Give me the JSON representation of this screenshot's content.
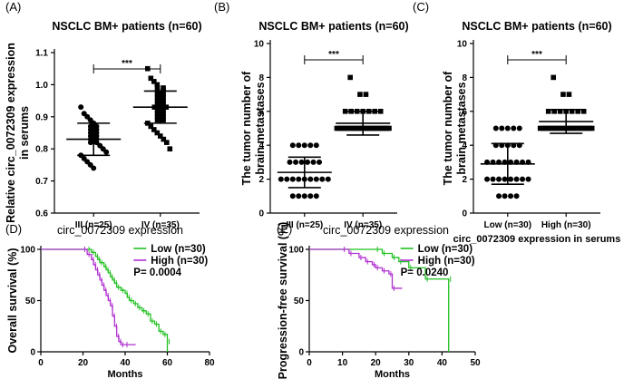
{
  "chart_data": [
    {
      "type": "scatter",
      "panel_label": "(A)",
      "title": "NSCLC BM+ patients (n=60)",
      "ylabel": "Relative circ_0072309 expression in serums",
      "ylabel_lines": [
        "Relative circ_0072309 expression",
        "in serums"
      ],
      "xlabel": "",
      "categories": [
        "III (n=25)",
        "IV (n=35)"
      ],
      "ylim": [
        0.6,
        1.1
      ],
      "yticks": [
        "0.6",
        "0.7",
        "0.8",
        "0.9",
        "1.0",
        "1.1"
      ],
      "series": [
        {
          "category": "III (n=25)",
          "marker": "circle",
          "mean": 0.83,
          "sd": 0.05,
          "values": [
            0.93,
            0.91,
            0.9,
            0.89,
            0.88,
            0.87,
            0.86,
            0.85,
            0.85,
            0.84,
            0.84,
            0.83,
            0.83,
            0.82,
            0.82,
            0.81,
            0.8,
            0.79,
            0.78,
            0.77,
            0.76,
            0.75,
            0.74,
            0.87,
            0.86
          ]
        },
        {
          "category": "IV (n=35)",
          "marker": "square",
          "mean": 0.93,
          "sd": 0.05,
          "values": [
            1.05,
            1.02,
            1.01,
            1.0,
            0.99,
            0.99,
            0.98,
            0.98,
            0.97,
            0.97,
            0.96,
            0.96,
            0.95,
            0.95,
            0.94,
            0.94,
            0.93,
            0.93,
            0.93,
            0.92,
            0.92,
            0.91,
            0.91,
            0.9,
            0.9,
            0.89,
            0.89,
            0.88,
            0.87,
            0.86,
            0.85,
            0.84,
            0.83,
            0.82,
            0.8
          ]
        }
      ],
      "significance": "***"
    },
    {
      "type": "scatter",
      "panel_label": "(B)",
      "title": "NSCLC BM+ patients (n=60)",
      "ylabel": "The tumor number of brain metastases",
      "ylabel_lines": [
        "The tumor number of",
        "brain metastases"
      ],
      "xlabel": "",
      "categories": [
        "III (n=25)",
        "IV (n=35)"
      ],
      "ylim": [
        0,
        10
      ],
      "yticks": [
        "0",
        "2",
        "4",
        "6",
        "8",
        "10"
      ],
      "series": [
        {
          "category": "III (n=25)",
          "marker": "circle",
          "mean": 2.4,
          "sd": 0.9,
          "values": [
            4,
            4,
            4,
            4,
            4,
            3,
            3,
            3,
            3,
            3,
            3,
            2,
            2,
            2,
            2,
            2,
            2,
            2,
            2,
            2,
            1,
            1,
            1,
            1,
            1
          ]
        },
        {
          "category": "IV (n=35)",
          "marker": "square",
          "mean": 5.3,
          "sd": 0.7,
          "values": [
            8,
            7,
            7,
            6,
            6,
            6,
            6,
            6,
            6,
            6,
            5,
            5,
            5,
            5,
            5,
            5,
            5,
            5,
            5,
            5,
            5,
            5,
            5,
            5,
            5,
            5,
            5,
            5,
            5,
            5,
            5,
            5,
            5,
            5,
            5
          ]
        }
      ],
      "significance": "***"
    },
    {
      "type": "scatter",
      "panel_label": "(C)",
      "title": "NSCLC BM+ patients (n=60)",
      "ylabel": "The tumor number of brain metastases",
      "ylabel_lines": [
        "The tumor number of",
        "brain metastases"
      ],
      "xlabel": "circ_0072309 expression in serums",
      "categories": [
        "Low (n=30)",
        "High (n=30)"
      ],
      "ylim": [
        0,
        10
      ],
      "yticks": [
        "0",
        "2",
        "4",
        "6",
        "8",
        "10"
      ],
      "series": [
        {
          "category": "Low (n=30)",
          "marker": "circle",
          "mean": 2.9,
          "sd": 1.2,
          "values": [
            5,
            5,
            5,
            5,
            5,
            4,
            4,
            4,
            4,
            4,
            3,
            3,
            3,
            3,
            3,
            3,
            3,
            3,
            2,
            2,
            2,
            2,
            2,
            2,
            2,
            2,
            1,
            1,
            1,
            1
          ]
        },
        {
          "category": "High (n=30)",
          "marker": "square",
          "mean": 5.4,
          "sd": 0.7,
          "values": [
            8,
            7,
            7,
            6,
            6,
            6,
            6,
            6,
            6,
            6,
            5,
            5,
            5,
            5,
            5,
            5,
            5,
            5,
            5,
            5,
            5,
            5,
            5,
            5,
            5,
            5,
            5,
            5,
            5,
            5
          ]
        }
      ],
      "significance": "***"
    },
    {
      "type": "line",
      "panel_label": "(D)",
      "title": "circ_0072309 expression",
      "ylabel": "Overall survival (%)",
      "xlabel": "Months",
      "xlim": [
        0,
        80
      ],
      "ylim": [
        0,
        100
      ],
      "xticks": [
        "0",
        "20",
        "40",
        "60",
        "80"
      ],
      "yticks": [
        "0",
        "50",
        "100"
      ],
      "series": [
        {
          "name": "Low (n=30)",
          "color": "#22c022",
          "x": [
            0,
            22,
            24,
            26,
            27,
            28,
            30,
            31,
            32,
            33,
            34,
            35,
            36,
            38,
            40,
            41,
            42,
            44,
            46,
            48,
            50,
            52,
            54,
            56,
            58,
            60,
            60
          ],
          "y": [
            100,
            100,
            97,
            93,
            90,
            87,
            83,
            80,
            77,
            73,
            70,
            67,
            63,
            60,
            57,
            53,
            50,
            47,
            43,
            40,
            37,
            30,
            27,
            20,
            17,
            10,
            0
          ]
        },
        {
          "name": "High (n=30)",
          "color": "#b030d0",
          "x": [
            0,
            20,
            22,
            24,
            25,
            26,
            27,
            28,
            29,
            30,
            31,
            32,
            33,
            34,
            35,
            36,
            37,
            38,
            40,
            45
          ],
          "y": [
            100,
            100,
            95,
            90,
            85,
            80,
            75,
            70,
            65,
            60,
            55,
            50,
            45,
            35,
            25,
            15,
            10,
            7,
            7,
            7
          ]
        }
      ],
      "p_value": "P= 0.0004"
    },
    {
      "type": "line",
      "panel_label": "(E)",
      "title": "circ_0072309 expression",
      "ylabel": "Progression-free survival (%)",
      "xlabel": "Months",
      "xlim": [
        0,
        50
      ],
      "ylim": [
        0,
        100
      ],
      "xticks": [
        "0",
        "10",
        "20",
        "30",
        "40",
        "50"
      ],
      "yticks": [
        "0",
        "50",
        "100"
      ],
      "series": [
        {
          "name": "Low (n=30)",
          "color": "#22c022",
          "x": [
            0,
            20,
            22,
            25,
            27,
            30,
            35,
            42,
            42
          ],
          "y": [
            100,
            100,
            96,
            92,
            88,
            82,
            71,
            71,
            0
          ]
        },
        {
          "name": "High (n=30)",
          "color": "#b030d0",
          "x": [
            0,
            10,
            12,
            15,
            17,
            19,
            20,
            22,
            24,
            25,
            28
          ],
          "y": [
            100,
            100,
            96,
            92,
            88,
            85,
            82,
            79,
            76,
            62,
            62
          ]
        }
      ],
      "p_value": "P= 0.0240"
    }
  ]
}
